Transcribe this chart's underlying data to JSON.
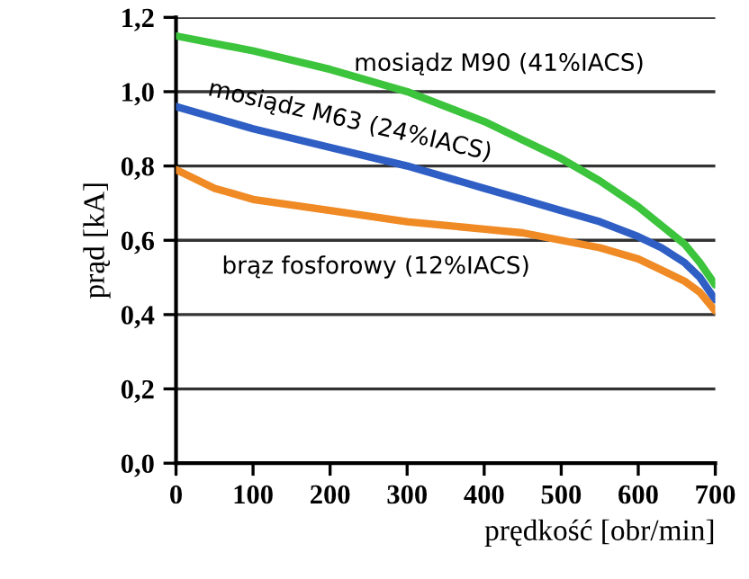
{
  "chart_data": {
    "type": "line",
    "xlabel": "prędkość [obr/min]",
    "ylabel": "prąd [kA]",
    "xlim": [
      0,
      700
    ],
    "ylim": [
      0,
      1.2
    ],
    "xticks": [
      0,
      100,
      200,
      300,
      400,
      500,
      600,
      700
    ],
    "yticks": [
      {
        "value": 0,
        "label": "0,0"
      },
      {
        "value": 0.2,
        "label": "0,2"
      },
      {
        "value": 0.4,
        "label": "0,4"
      },
      {
        "value": 0.6,
        "label": "0,6"
      },
      {
        "value": 0.8,
        "label": "0,8"
      },
      {
        "value": 1.0,
        "label": "1,0"
      },
      {
        "value": 1.2,
        "label": "1,2"
      }
    ],
    "grid": "y",
    "line_style": "solid",
    "marker": "none",
    "series": [
      {
        "name": "mosiądz M90 (41%IACS)",
        "color": "#3cc43c",
        "x": [
          0,
          100,
          200,
          300,
          400,
          450,
          500,
          550,
          600,
          630,
          660,
          680,
          700
        ],
        "values": [
          1.15,
          1.11,
          1.06,
          1.0,
          0.92,
          0.87,
          0.82,
          0.76,
          0.69,
          0.64,
          0.59,
          0.54,
          0.48
        ]
      },
      {
        "name": "mosiądz M63 (24%IACS)",
        "color": "#2f5fc4",
        "x": [
          0,
          100,
          200,
          300,
          400,
          450,
          500,
          550,
          600,
          630,
          660,
          680,
          700
        ],
        "values": [
          0.96,
          0.9,
          0.85,
          0.8,
          0.74,
          0.71,
          0.68,
          0.65,
          0.61,
          0.58,
          0.54,
          0.5,
          0.44
        ]
      },
      {
        "name": "brąz fosforowy (12%IACS)",
        "color": "#f08a24",
        "x": [
          0,
          50,
          100,
          200,
          300,
          400,
          450,
          500,
          550,
          600,
          630,
          660,
          680,
          700
        ],
        "values": [
          0.79,
          0.74,
          0.71,
          0.68,
          0.65,
          0.63,
          0.62,
          0.6,
          0.58,
          0.55,
          0.52,
          0.49,
          0.46,
          0.41
        ]
      }
    ]
  }
}
